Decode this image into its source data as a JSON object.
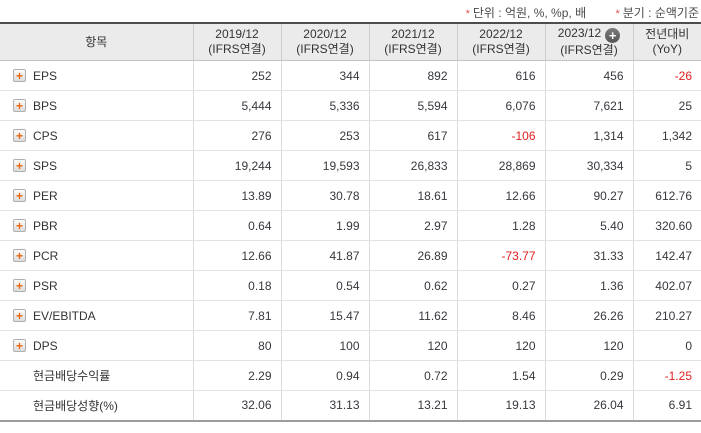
{
  "notes": {
    "marker": "*",
    "unit_label": "단위 : 억원, %, %p, 배",
    "basis_label": "분기 : 순액기준"
  },
  "table": {
    "item_header": "항목",
    "columns": [
      {
        "period": "2019/12",
        "basis": "(IFRS연결)",
        "has_add_button": false
      },
      {
        "period": "2020/12",
        "basis": "(IFRS연결)",
        "has_add_button": false
      },
      {
        "period": "2021/12",
        "basis": "(IFRS연결)",
        "has_add_button": false
      },
      {
        "period": "2022/12",
        "basis": "(IFRS연결)",
        "has_add_button": false
      },
      {
        "period": "2023/12",
        "basis": "(IFRS연결)",
        "has_add_button": true
      },
      {
        "period": "전년대비",
        "basis": "(YoY)",
        "has_add_button": false
      }
    ],
    "rows": [
      {
        "label": "EPS",
        "expandable": true,
        "values": [
          "252",
          "344",
          "892",
          "616",
          "456",
          "-26"
        ]
      },
      {
        "label": "BPS",
        "expandable": true,
        "values": [
          "5,444",
          "5,336",
          "5,594",
          "6,076",
          "7,621",
          "25"
        ]
      },
      {
        "label": "CPS",
        "expandable": true,
        "values": [
          "276",
          "253",
          "617",
          "-106",
          "1,314",
          "1,342"
        ]
      },
      {
        "label": "SPS",
        "expandable": true,
        "values": [
          "19,244",
          "19,593",
          "26,833",
          "28,869",
          "30,334",
          "5"
        ]
      },
      {
        "label": "PER",
        "expandable": true,
        "values": [
          "13.89",
          "30.78",
          "18.61",
          "12.66",
          "90.27",
          "612.76"
        ]
      },
      {
        "label": "PBR",
        "expandable": true,
        "values": [
          "0.64",
          "1.99",
          "2.97",
          "1.28",
          "5.40",
          "320.60"
        ]
      },
      {
        "label": "PCR",
        "expandable": true,
        "values": [
          "12.66",
          "41.87",
          "26.89",
          "-73.77",
          "31.33",
          "142.47"
        ]
      },
      {
        "label": "PSR",
        "expandable": true,
        "values": [
          "0.18",
          "0.54",
          "0.62",
          "0.27",
          "1.36",
          "402.07"
        ]
      },
      {
        "label": "EV/EBITDA",
        "expandable": true,
        "values": [
          "7.81",
          "15.47",
          "11.62",
          "8.46",
          "26.26",
          "210.27"
        ]
      },
      {
        "label": "DPS",
        "expandable": true,
        "values": [
          "80",
          "100",
          "120",
          "120",
          "120",
          "0"
        ]
      },
      {
        "label": "현금배당수익률",
        "expandable": false,
        "values": [
          "2.29",
          "0.94",
          "0.72",
          "1.54",
          "0.29",
          "-1.25"
        ]
      },
      {
        "label": "현금배당성향(%)",
        "expandable": false,
        "values": [
          "32.06",
          "31.13",
          "13.21",
          "19.13",
          "26.04",
          "6.91"
        ]
      }
    ],
    "colors": {
      "negative_value": "#e01e1e",
      "header_background": "#ebebeb",
      "expand_plus": "#e8650d",
      "note_star": "#e05050",
      "table_top_border": "#4d4d4d"
    }
  }
}
